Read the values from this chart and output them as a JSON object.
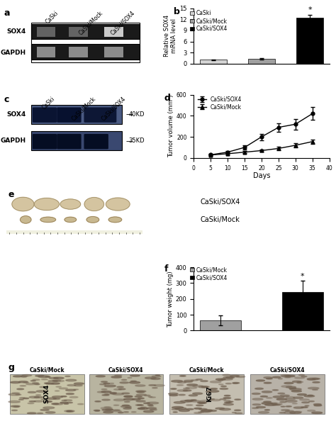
{
  "panel_b": {
    "categories": [
      "CaSki",
      "CaSki/Mock",
      "CaSki/SOX4"
    ],
    "values": [
      1.0,
      1.2,
      12.5
    ],
    "errors": [
      0.15,
      0.2,
      0.8
    ],
    "colors": [
      "#d3d3d3",
      "#a0a0a0",
      "#000000"
    ],
    "ylabel": "Relative SOX4\nmRNA level",
    "ylim": [
      0,
      15
    ],
    "yticks": [
      0,
      3,
      6,
      9,
      12,
      15
    ],
    "legend_labels": [
      "CaSki",
      "CaSki/Mock",
      "CaSki/SOX4"
    ],
    "legend_colors": [
      "#d3d3d3",
      "#a0a0a0",
      "#000000"
    ]
  },
  "panel_d": {
    "days": [
      5,
      10,
      15,
      20,
      25,
      30,
      35
    ],
    "sox4_values": [
      30,
      55,
      100,
      200,
      290,
      320,
      420
    ],
    "sox4_errors": [
      8,
      10,
      20,
      30,
      40,
      50,
      60
    ],
    "mock_values": [
      28,
      40,
      55,
      70,
      90,
      120,
      155
    ],
    "mock_errors": [
      5,
      8,
      10,
      12,
      15,
      18,
      20
    ],
    "ylabel": "Tumor volume (mm³)",
    "xlabel": "Days",
    "ylim": [
      0,
      600
    ],
    "yticks": [
      0,
      200,
      400,
      600
    ],
    "xlim": [
      0,
      40
    ],
    "xticks": [
      0,
      5,
      10,
      15,
      20,
      25,
      30,
      35,
      40
    ]
  },
  "panel_f": {
    "categories": [
      "CaSki/Mock",
      "CaSki/SOX4"
    ],
    "values": [
      65,
      245
    ],
    "errors": [
      30,
      70
    ],
    "colors": [
      "#a0a0a0",
      "#000000"
    ],
    "ylabel": "Tumor weight (mg)",
    "ylim": [
      0,
      400
    ],
    "yticks": [
      0,
      100,
      200,
      300,
      400
    ]
  },
  "gel_a": {
    "bg": "#f0f0f0",
    "band_bg": "#2a2a2a",
    "labels": [
      "CaSki",
      "CaSki/Mock",
      "CaSki/SOX4"
    ],
    "sox4_intensities": [
      0.45,
      0.45,
      0.92
    ],
    "gapdh_intensities": [
      0.7,
      0.7,
      0.7
    ]
  },
  "western_c": {
    "sox4_bg": "#6070a0",
    "gapdh_bg": "#4a5888",
    "sox4_intensities": [
      0.65,
      0.75,
      0.55
    ],
    "gapdh_intensities": [
      0.75,
      0.75,
      0.75
    ],
    "labels": [
      "CaSki",
      "CaSki/Mock",
      "CaSki/SOX4"
    ]
  }
}
